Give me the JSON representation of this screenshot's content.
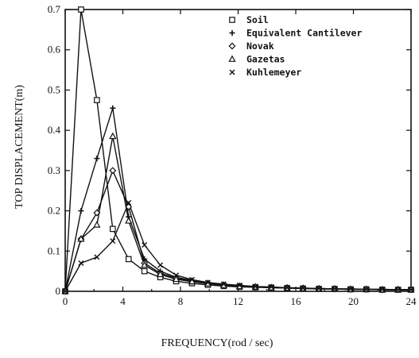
{
  "chart_data": {
    "type": "line",
    "xlabel": "FREQUENCY(rod / sec)",
    "ylabel": "TOP DISPLACEMENT(m)",
    "xlim": [
      0,
      24
    ],
    "ylim": [
      0,
      0.7
    ],
    "x_ticks": [
      "0",
      "4",
      "8",
      "12",
      "16",
      "20",
      "24"
    ],
    "y_ticks": [
      "0",
      "0.1",
      "0.2",
      "0.3",
      "0.4",
      "0.5",
      "0.6",
      "0.7"
    ],
    "grid": false,
    "legend_position": "top-right",
    "series": [
      {
        "name": "Soil",
        "marker": "square",
        "x": [
          0,
          1.1,
          2.2,
          3.3,
          4.4,
          5.5,
          6.6,
          7.7,
          8.8,
          9.9,
          11,
          12.1,
          13.2,
          14.3,
          15.4,
          16.5,
          17.6,
          18.7,
          19.8,
          20.9,
          22,
          23.1,
          24
        ],
        "y": [
          0,
          0.7,
          0.475,
          0.155,
          0.08,
          0.05,
          0.035,
          0.025,
          0.02,
          0.016,
          0.013,
          0.011,
          0.01,
          0.009,
          0.008,
          0.007,
          0.006,
          0.006,
          0.005,
          0.005,
          0.004,
          0.004,
          0.004
        ]
      },
      {
        "name": "Equivalent Cantilever",
        "marker": "plus",
        "x": [
          0,
          1.1,
          2.2,
          3.3,
          4.4,
          5.5,
          6.6,
          7.7,
          8.8,
          9.9,
          11,
          12.1,
          13.2,
          14.3,
          15.4,
          16.5,
          17.6,
          18.7,
          19.8,
          20.9,
          22,
          23.1,
          24
        ],
        "y": [
          0,
          0.2,
          0.33,
          0.455,
          0.185,
          0.08,
          0.05,
          0.035,
          0.027,
          0.021,
          0.017,
          0.014,
          0.012,
          0.01,
          0.009,
          0.008,
          0.007,
          0.006,
          0.006,
          0.005,
          0.005,
          0.004,
          0.004
        ]
      },
      {
        "name": "Novak",
        "marker": "diamond",
        "x": [
          0,
          1.1,
          2.2,
          3.3,
          4.4,
          5.5,
          6.6,
          7.7,
          8.8,
          9.9,
          11,
          12.1,
          13.2,
          14.3,
          15.4,
          16.5,
          17.6,
          18.7,
          19.8,
          20.9,
          22,
          23.1,
          24
        ],
        "y": [
          0,
          0.13,
          0.195,
          0.3,
          0.21,
          0.07,
          0.045,
          0.033,
          0.025,
          0.02,
          0.016,
          0.013,
          0.011,
          0.01,
          0.009,
          0.008,
          0.007,
          0.006,
          0.005,
          0.005,
          0.004,
          0.004,
          0.004
        ]
      },
      {
        "name": "Gazetas",
        "marker": "triangle",
        "x": [
          0,
          1.1,
          2.2,
          3.3,
          4.4,
          5.5,
          6.6,
          7.7,
          8.8,
          9.9,
          11,
          12.1,
          13.2,
          14.3,
          15.4,
          16.5,
          17.6,
          18.7,
          19.8,
          20.9,
          22,
          23.1,
          24
        ],
        "y": [
          0,
          0.13,
          0.165,
          0.385,
          0.175,
          0.065,
          0.042,
          0.03,
          0.024,
          0.019,
          0.015,
          0.012,
          0.011,
          0.009,
          0.008,
          0.007,
          0.006,
          0.006,
          0.005,
          0.005,
          0.004,
          0.004,
          0.004
        ]
      },
      {
        "name": "Kuhlemeyer",
        "marker": "x",
        "x": [
          0,
          1.1,
          2.2,
          3.3,
          4.4,
          5.5,
          6.6,
          7.7,
          8.8,
          9.9,
          11,
          12.1,
          13.2,
          14.3,
          15.4,
          16.5,
          17.6,
          18.7,
          19.8,
          20.9,
          22,
          23.1,
          24
        ],
        "y": [
          0,
          0.07,
          0.085,
          0.125,
          0.22,
          0.115,
          0.065,
          0.04,
          0.029,
          0.022,
          0.018,
          0.015,
          0.012,
          0.011,
          0.009,
          0.008,
          0.007,
          0.006,
          0.006,
          0.005,
          0.005,
          0.004,
          0.004
        ]
      }
    ]
  }
}
